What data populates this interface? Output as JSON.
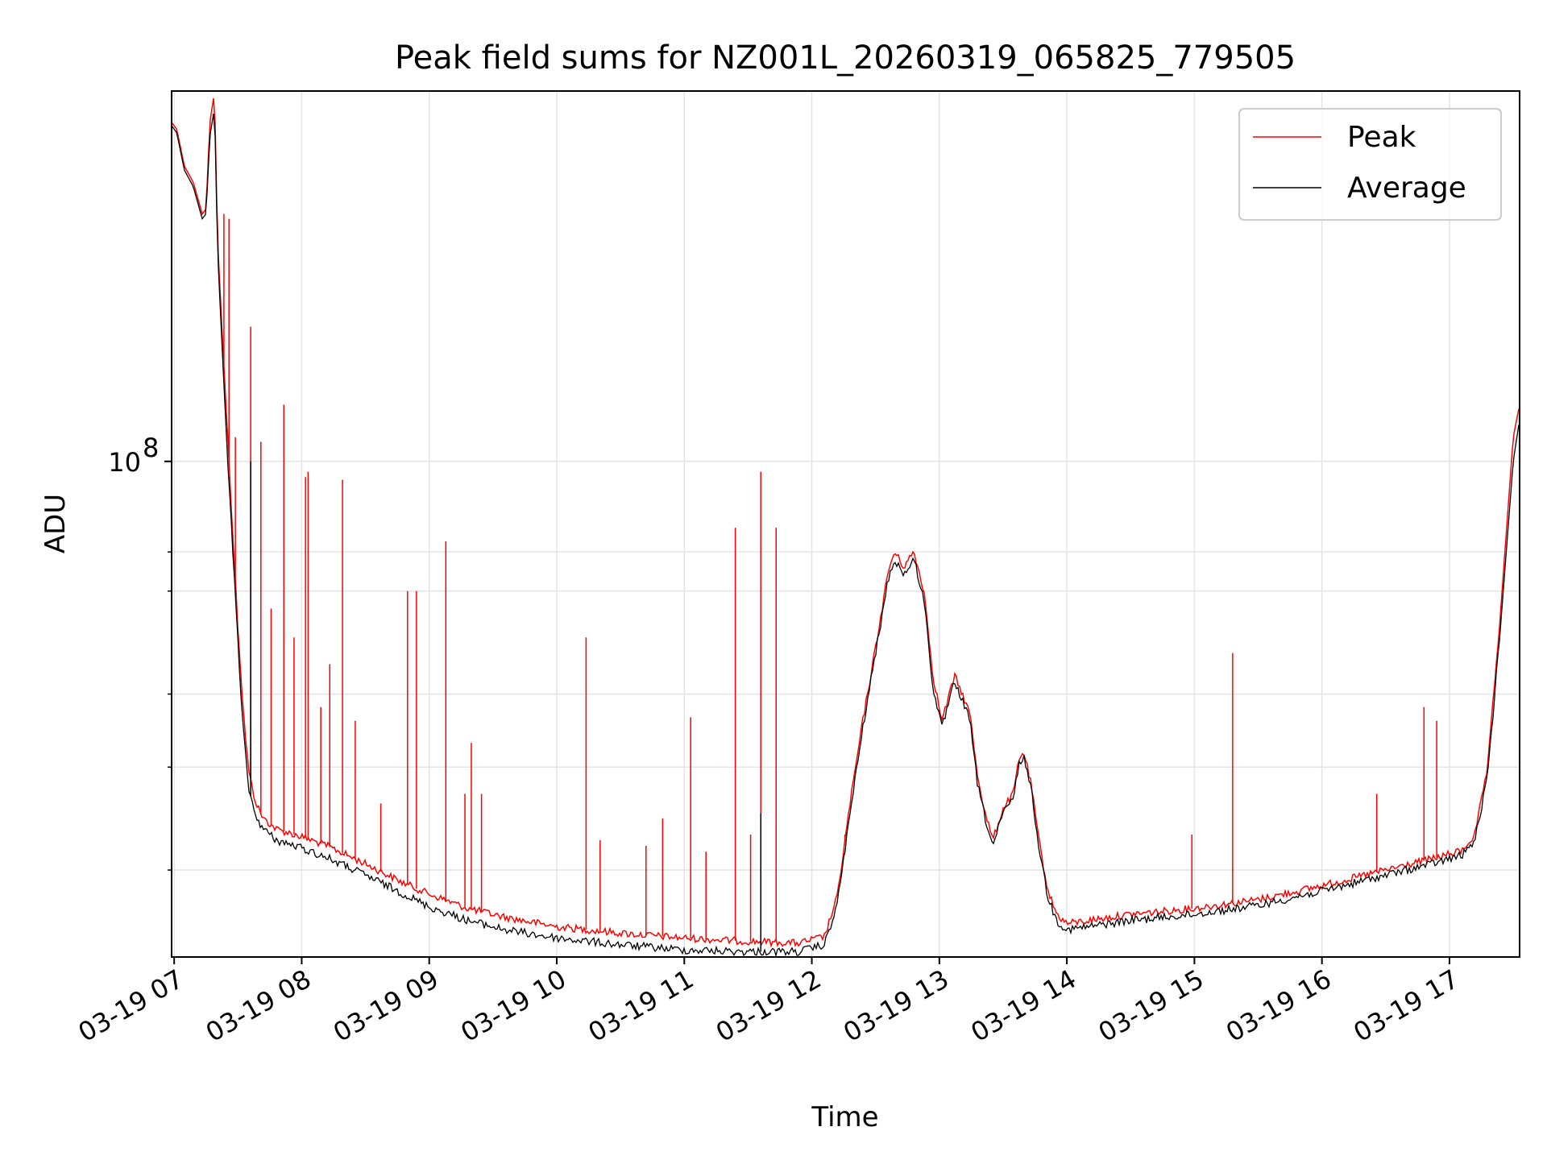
{
  "chart_data": {
    "type": "line",
    "title": "Peak field sums for NZ001L_20260319_065825_779505",
    "xlabel": "Time",
    "ylabel": "ADU",
    "xlim": [
      6.98,
      17.55
    ],
    "ylim": [
      14200000,
      430000000
    ],
    "yscale": "log",
    "grid": true,
    "legend_position": "top-right",
    "x_ticks": [
      {
        "value": 7,
        "label": "03-19 07"
      },
      {
        "value": 8,
        "label": "03-19 08"
      },
      {
        "value": 9,
        "label": "03-19 09"
      },
      {
        "value": 10,
        "label": "03-19 10"
      },
      {
        "value": 11,
        "label": "03-19 11"
      },
      {
        "value": 12,
        "label": "03-19 12"
      },
      {
        "value": 13,
        "label": "03-19 13"
      },
      {
        "value": 14,
        "label": "03-19 14"
      },
      {
        "value": 15,
        "label": "03-19 15"
      },
      {
        "value": 16,
        "label": "03-19 16"
      },
      {
        "value": 17,
        "label": "03-19 17"
      }
    ],
    "y_ticks": [
      {
        "value": 100000000,
        "base": "10",
        "exp": "8"
      }
    ],
    "y_minor_ticks": [
      20000000,
      30000000,
      40000000,
      60000000,
      70000000
    ],
    "series": [
      {
        "name": "Peak",
        "color": "#ff0000",
        "x": [
          6.98,
          7.02,
          7.08,
          7.15,
          7.22,
          7.25,
          7.28,
          7.31,
          7.32,
          7.34,
          7.38,
          7.42,
          7.46,
          7.5,
          7.54,
          7.58,
          7.62,
          7.66,
          7.7,
          7.8,
          8.0,
          8.2,
          8.5,
          8.8,
          9.0,
          9.3,
          9.6,
          10.0,
          10.5,
          11.0,
          11.5,
          11.9,
          12.1,
          12.2,
          12.3,
          12.4,
          12.5,
          12.6,
          12.65,
          12.72,
          12.8,
          12.88,
          12.95,
          13.02,
          13.08,
          13.12,
          13.18,
          13.24,
          13.3,
          13.36,
          13.42,
          13.5,
          13.58,
          13.62,
          13.66,
          13.72,
          13.78,
          13.85,
          13.92,
          14.0,
          14.5,
          15.0,
          15.5,
          16.0,
          16.5,
          16.9,
          17.1,
          17.2,
          17.3,
          17.4,
          17.5,
          17.55
        ],
        "y": [
          380000000,
          370000000,
          320000000,
          300000000,
          265000000,
          270000000,
          380000000,
          420000000,
          390000000,
          240000000,
          160000000,
          110000000,
          75000000,
          52000000,
          38000000,
          30000000,
          27000000,
          25500000,
          24500000,
          23500000,
          22800000,
          22000000,
          20500000,
          19000000,
          18200000,
          17200000,
          16600000,
          16000000,
          15600000,
          15300000,
          15100000,
          15000000,
          15400000,
          18000000,
          26000000,
          36000000,
          48000000,
          65000000,
          70000000,
          66000000,
          70000000,
          60000000,
          43000000,
          36000000,
          40000000,
          43000000,
          40000000,
          37000000,
          29000000,
          25000000,
          22500000,
          25500000,
          27000000,
          30500000,
          32000000,
          28000000,
          22500000,
          18500000,
          16800000,
          16200000,
          16800000,
          17200000,
          17800000,
          18800000,
          20000000,
          21000000,
          21600000,
          23000000,
          30000000,
          55000000,
          110000000,
          125000000
        ]
      },
      {
        "name": "Average",
        "color": "#000000",
        "x": [
          6.98,
          7.02,
          7.08,
          7.15,
          7.22,
          7.25,
          7.28,
          7.31,
          7.32,
          7.34,
          7.38,
          7.42,
          7.46,
          7.5,
          7.54,
          7.58,
          7.62,
          7.66,
          7.7,
          7.8,
          8.0,
          8.2,
          8.5,
          8.8,
          9.0,
          9.3,
          9.6,
          10.0,
          10.5,
          11.0,
          11.5,
          11.9,
          12.1,
          12.2,
          12.3,
          12.4,
          12.5,
          12.6,
          12.65,
          12.72,
          12.8,
          12.88,
          12.95,
          13.02,
          13.08,
          13.12,
          13.18,
          13.24,
          13.3,
          13.36,
          13.42,
          13.5,
          13.58,
          13.62,
          13.66,
          13.72,
          13.78,
          13.85,
          13.92,
          14.0,
          14.5,
          15.0,
          15.5,
          16.0,
          16.5,
          16.9,
          17.1,
          17.2,
          17.3,
          17.4,
          17.5,
          17.55
        ],
        "y": [
          375000000,
          365000000,
          315000000,
          295000000,
          260000000,
          265000000,
          360000000,
          395000000,
          370000000,
          230000000,
          150000000,
          100000000,
          70000000,
          49000000,
          35000000,
          28000000,
          25500000,
          24300000,
          23500000,
          22500000,
          21800000,
          21000000,
          19600000,
          18200000,
          17300000,
          16400000,
          15800000,
          15300000,
          14900000,
          14600000,
          14500000,
          14500000,
          14900000,
          17500000,
          25000000,
          35000000,
          47000000,
          63000000,
          68000000,
          64000000,
          68000000,
          58000000,
          41000000,
          35000000,
          39000000,
          42000000,
          39000000,
          36000000,
          28000000,
          24500000,
          22000000,
          25000000,
          26500000,
          30000000,
          31500000,
          27500000,
          22000000,
          18000000,
          16400000,
          15800000,
          16400000,
          16800000,
          17400000,
          18400000,
          19600000,
          20600000,
          21200000,
          22500000,
          29000000,
          52000000,
          100000000,
          118000000
        ]
      }
    ],
    "spikes": [
      {
        "series": "Peak",
        "x": 7.39,
        "y": 265000000
      },
      {
        "series": "Peak",
        "x": 7.43,
        "y": 260000000
      },
      {
        "series": "Peak",
        "x": 7.48,
        "y": 110000000
      },
      {
        "series": "Peak",
        "x": 7.6,
        "y": 170000000
      },
      {
        "series": "Peak",
        "x": 7.68,
        "y": 108000000
      },
      {
        "series": "Peak",
        "x": 7.76,
        "y": 56000000
      },
      {
        "series": "Peak",
        "x": 7.86,
        "y": 125000000
      },
      {
        "series": "Peak",
        "x": 7.94,
        "y": 50000000
      },
      {
        "series": "Peak",
        "x": 8.03,
        "y": 94000000
      },
      {
        "series": "Peak",
        "x": 8.05,
        "y": 96000000
      },
      {
        "series": "Peak",
        "x": 8.15,
        "y": 38000000
      },
      {
        "series": "Peak",
        "x": 8.22,
        "y": 45000000
      },
      {
        "series": "Peak",
        "x": 8.32,
        "y": 93000000
      },
      {
        "series": "Peak",
        "x": 8.42,
        "y": 36000000
      },
      {
        "series": "Peak",
        "x": 8.62,
        "y": 26000000
      },
      {
        "series": "Peak",
        "x": 8.83,
        "y": 60000000
      },
      {
        "series": "Peak",
        "x": 8.9,
        "y": 60000000
      },
      {
        "series": "Peak",
        "x": 9.13,
        "y": 73000000
      },
      {
        "series": "Peak",
        "x": 9.28,
        "y": 27000000
      },
      {
        "series": "Peak",
        "x": 9.33,
        "y": 33000000
      },
      {
        "series": "Peak",
        "x": 9.41,
        "y": 27000000
      },
      {
        "series": "Peak",
        "x": 10.23,
        "y": 50000000
      },
      {
        "series": "Peak",
        "x": 10.34,
        "y": 22500000
      },
      {
        "series": "Peak",
        "x": 10.7,
        "y": 22000000
      },
      {
        "series": "Peak",
        "x": 10.83,
        "y": 24500000
      },
      {
        "series": "Peak",
        "x": 11.05,
        "y": 36500000
      },
      {
        "series": "Peak",
        "x": 11.17,
        "y": 21500000
      },
      {
        "series": "Peak",
        "x": 11.4,
        "y": 77000000
      },
      {
        "series": "Peak",
        "x": 11.52,
        "y": 23000000
      },
      {
        "series": "Peak",
        "x": 11.6,
        "y": 96000000
      },
      {
        "series": "Peak",
        "x": 11.72,
        "y": 77000000
      },
      {
        "series": "Peak",
        "x": 12.26,
        "y": 23000000
      },
      {
        "series": "Peak",
        "x": 14.98,
        "y": 23000000
      },
      {
        "series": "Peak",
        "x": 15.3,
        "y": 47000000
      },
      {
        "series": "Peak",
        "x": 16.43,
        "y": 27000000
      },
      {
        "series": "Peak",
        "x": 16.8,
        "y": 38000000
      },
      {
        "series": "Peak",
        "x": 16.9,
        "y": 36000000
      },
      {
        "series": "Average",
        "x": 7.6,
        "y": 100000000
      },
      {
        "series": "Average",
        "x": 11.6,
        "y": 25000000
      }
    ]
  }
}
